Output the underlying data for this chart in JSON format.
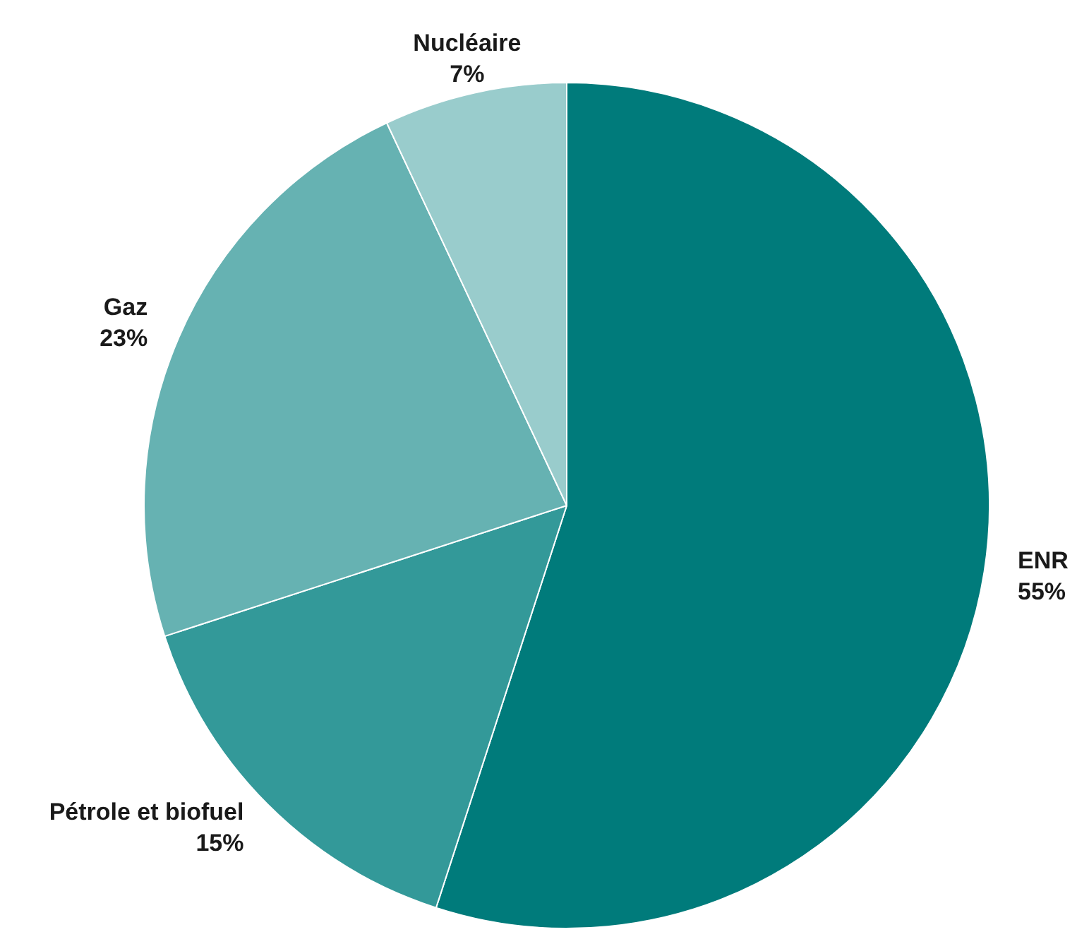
{
  "chart_data": {
    "type": "pie",
    "categories": [
      "ENR",
      "Pétrole et biofuel",
      "Gaz",
      "Nucléaire"
    ],
    "values": [
      55,
      15,
      23,
      7
    ],
    "value_labels": [
      "55%",
      "15%",
      "23%",
      "7%"
    ],
    "colors": [
      "#007b7b",
      "#339999",
      "#66b2b2",
      "#99cccc"
    ],
    "legend": false
  }
}
